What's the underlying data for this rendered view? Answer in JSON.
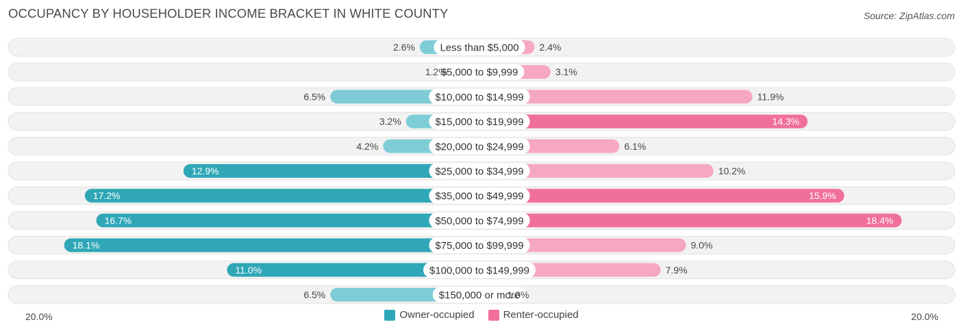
{
  "title": "OCCUPANCY BY HOUSEHOLDER INCOME BRACKET IN WHITE COUNTY",
  "source": "Source: ZipAtlas.com",
  "colors": {
    "owner": "#2fa7b7",
    "owner_light": "#7ecdd6",
    "renter": "#f0709a",
    "renter_light": "#f7a8c1",
    "track": "#f2f2f2"
  },
  "legend": {
    "owner_label": "Owner-occupied",
    "renter_label": "Renter-occupied"
  },
  "axis": {
    "left_label": "20.0%",
    "right_label": "20.0%"
  },
  "chart_data": {
    "type": "bar",
    "orientation": "horizontal-diverging",
    "title": "OCCUPANCY BY HOUSEHOLDER INCOME BRACKET IN WHITE COUNTY",
    "xlim": [
      -20,
      20
    ],
    "categories": [
      "Less than $5,000",
      "$5,000 to $9,999",
      "$10,000 to $14,999",
      "$15,000 to $19,999",
      "$20,000 to $24,999",
      "$25,000 to $34,999",
      "$35,000 to $49,999",
      "$50,000 to $74,999",
      "$75,000 to $99,999",
      "$100,000 to $149,999",
      "$150,000 or more"
    ],
    "series": [
      {
        "name": "Owner-occupied",
        "values": [
          2.6,
          1.2,
          6.5,
          3.2,
          4.2,
          12.9,
          17.2,
          16.7,
          18.1,
          11.0,
          6.5
        ],
        "labels": [
          "2.6%",
          "1.2%",
          "6.5%",
          "3.2%",
          "4.2%",
          "12.9%",
          "17.2%",
          "16.7%",
          "18.1%",
          "11.0%",
          "6.5%"
        ]
      },
      {
        "name": "Renter-occupied",
        "values": [
          2.4,
          3.1,
          11.9,
          14.3,
          6.1,
          10.2,
          15.9,
          18.4,
          9.0,
          7.9,
          1.0
        ],
        "labels": [
          "2.4%",
          "3.1%",
          "11.9%",
          "14.3%",
          "6.1%",
          "10.2%",
          "15.9%",
          "18.4%",
          "9.0%",
          "7.9%",
          "1.0%"
        ]
      }
    ]
  }
}
